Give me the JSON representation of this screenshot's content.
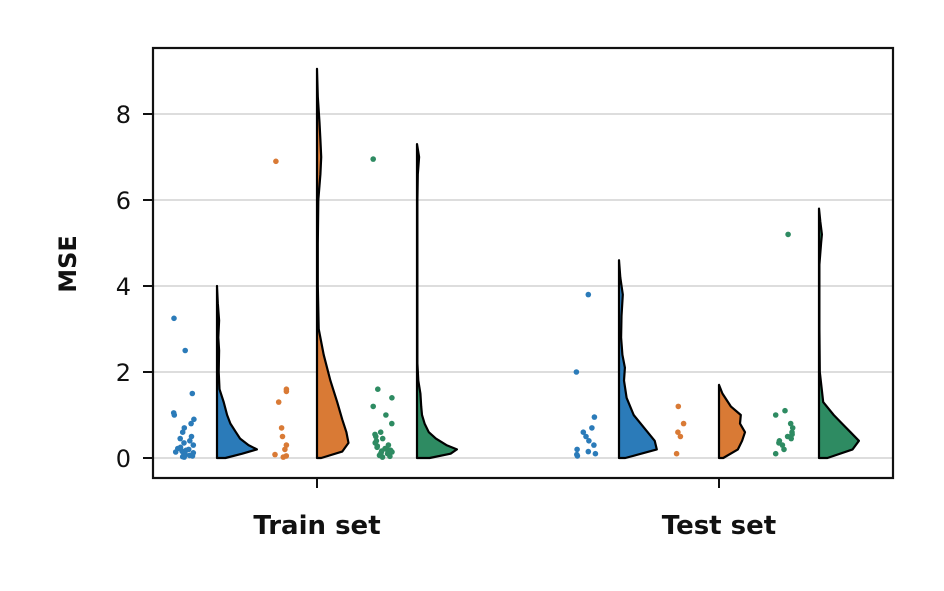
{
  "chart_data": {
    "type": "raincloud",
    "title": "",
    "xlabel": "",
    "ylabel": "MSE",
    "ylim": [
      -0.45,
      9.6
    ],
    "yticks": [
      0,
      2,
      4,
      6,
      8
    ],
    "grid": "horizontal",
    "categories": [
      "Train set",
      "Test set"
    ],
    "groups": [
      {
        "category": "Train set",
        "series": [
          {
            "color": "#2b7bb9",
            "points": [
              0.02,
              0.03,
              0.05,
              0.06,
              0.08,
              0.1,
              0.12,
              0.14,
              0.16,
              0.18,
              0.2,
              0.22,
              0.25,
              0.3,
              0.35,
              0.4,
              0.45,
              0.5,
              0.6,
              0.7,
              0.8,
              0.9,
              1.0,
              1.05,
              1.5,
              2.5,
              3.25
            ],
            "density": [
              [
                0,
                0.2
              ],
              [
                0.1,
                0.6
              ],
              [
                0.2,
                0.95
              ],
              [
                0.3,
                0.75
              ],
              [
                0.45,
                0.55
              ],
              [
                0.6,
                0.45
              ],
              [
                0.8,
                0.32
              ],
              [
                1.0,
                0.24
              ],
              [
                1.3,
                0.16
              ],
              [
                1.6,
                0.06
              ],
              [
                2.0,
                0.04
              ],
              [
                2.5,
                0.05
              ],
              [
                2.8,
                0.03
              ],
              [
                3.2,
                0.05
              ],
              [
                3.6,
                0.02
              ],
              [
                4.0,
                0
              ]
            ]
          },
          {
            "color": "#d97a35",
            "points": [
              0.02,
              0.05,
              0.08,
              0.2,
              0.3,
              0.5,
              0.7,
              1.3,
              1.55,
              1.6,
              6.9
            ],
            "density": [
              [
                0,
                0.1
              ],
              [
                0.15,
                0.6
              ],
              [
                0.35,
                0.75
              ],
              [
                0.6,
                0.7
              ],
              [
                0.9,
                0.6
              ],
              [
                1.3,
                0.48
              ],
              [
                1.8,
                0.32
              ],
              [
                2.4,
                0.16
              ],
              [
                3.0,
                0.04
              ],
              [
                4.0,
                0.02
              ],
              [
                5.0,
                0.02
              ],
              [
                6.0,
                0.03
              ],
              [
                6.6,
                0.08
              ],
              [
                7.0,
                0.1
              ],
              [
                7.4,
                0.08
              ],
              [
                7.8,
                0.06
              ],
              [
                8.4,
                0.02
              ],
              [
                9.05,
                0
              ]
            ]
          },
          {
            "color": "#2e8b62",
            "points": [
              0.02,
              0.04,
              0.06,
              0.08,
              0.1,
              0.12,
              0.14,
              0.16,
              0.18,
              0.2,
              0.22,
              0.25,
              0.28,
              0.3,
              0.35,
              0.4,
              0.45,
              0.5,
              0.55,
              0.6,
              0.8,
              1.0,
              1.2,
              1.4,
              1.6,
              6.95
            ],
            "density": [
              [
                0,
                0.3
              ],
              [
                0.1,
                0.8
              ],
              [
                0.2,
                0.95
              ],
              [
                0.3,
                0.7
              ],
              [
                0.45,
                0.45
              ],
              [
                0.6,
                0.28
              ],
              [
                0.8,
                0.18
              ],
              [
                1.0,
                0.12
              ],
              [
                1.2,
                0.1
              ],
              [
                1.5,
                0.08
              ],
              [
                1.8,
                0.03
              ],
              [
                2.2,
                0.01
              ],
              [
                4.0,
                0.01
              ],
              [
                6.0,
                0.01
              ],
              [
                6.6,
                0.02
              ],
              [
                7.0,
                0.05
              ],
              [
                7.3,
                0
              ]
            ]
          }
        ]
      },
      {
        "category": "Test set",
        "series": [
          {
            "color": "#2b7bb9",
            "points": [
              0.05,
              0.08,
              0.1,
              0.15,
              0.2,
              0.3,
              0.4,
              0.5,
              0.6,
              0.7,
              0.95,
              2.0,
              3.8
            ],
            "density": [
              [
                0,
                0.15
              ],
              [
                0.2,
                0.9
              ],
              [
                0.4,
                0.85
              ],
              [
                0.7,
                0.6
              ],
              [
                1.0,
                0.35
              ],
              [
                1.4,
                0.18
              ],
              [
                1.8,
                0.12
              ],
              [
                2.1,
                0.14
              ],
              [
                2.4,
                0.08
              ],
              [
                2.8,
                0.05
              ],
              [
                3.3,
                0.06
              ],
              [
                3.8,
                0.09
              ],
              [
                4.2,
                0.03
              ],
              [
                4.6,
                0
              ]
            ]
          },
          {
            "color": "#d97a35",
            "points": [
              0.1,
              0.5,
              0.6,
              0.8,
              1.2
            ],
            "density": [
              [
                0,
                0.1
              ],
              [
                0.2,
                0.45
              ],
              [
                0.4,
                0.55
              ],
              [
                0.6,
                0.62
              ],
              [
                0.8,
                0.5
              ],
              [
                1.0,
                0.52
              ],
              [
                1.2,
                0.28
              ],
              [
                1.5,
                0.08
              ],
              [
                1.7,
                0
              ]
            ]
          },
          {
            "color": "#2e8b62",
            "points": [
              0.1,
              0.2,
              0.3,
              0.35,
              0.4,
              0.45,
              0.5,
              0.55,
              0.6,
              0.7,
              0.8,
              1.0,
              1.1,
              5.2
            ],
            "density": [
              [
                0,
                0.2
              ],
              [
                0.2,
                0.8
              ],
              [
                0.4,
                0.95
              ],
              [
                0.6,
                0.75
              ],
              [
                0.8,
                0.55
              ],
              [
                1.0,
                0.35
              ],
              [
                1.3,
                0.1
              ],
              [
                2.0,
                0.02
              ],
              [
                3.0,
                0.01
              ],
              [
                4.5,
                0.01
              ],
              [
                5.0,
                0.05
              ],
              [
                5.2,
                0.07
              ],
              [
                5.5,
                0.03
              ],
              [
                5.8,
                0
              ]
            ]
          }
        ]
      }
    ]
  }
}
